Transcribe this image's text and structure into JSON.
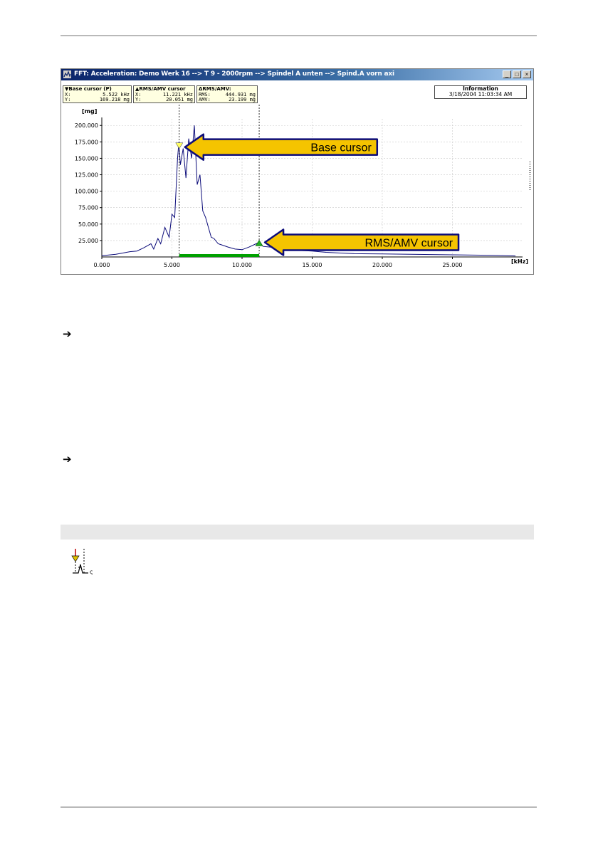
{
  "window": {
    "title": "FFT: Acceleration: Demo Werk 16 --> T 9 - 2000rpm --> Spindel A unten --> Spind.A vorn axi",
    "buttons": {
      "minimize": "_",
      "maximize": "□",
      "close": "×"
    }
  },
  "panels": {
    "base_cursor": {
      "heading": "▼Base cursor (P)",
      "x_label": "X:",
      "x_value": "5.522 kHz",
      "y_label": "Y:",
      "y_value": "169.218 mg"
    },
    "rms_cursor": {
      "heading": "▲RMS/AMV cursor",
      "x_label": "X:",
      "x_value": "11.221 kHz",
      "y_label": "Y:",
      "y_value": "20.051 mg"
    },
    "rms_amv": {
      "heading": "ΔRMS/AMV:",
      "rms_label": "RMS:",
      "rms_value": "444.931 mg",
      "amv_label": "AMV:",
      "amv_value": "23.199 mg"
    },
    "information": {
      "heading": "Information",
      "timestamp": "3/18/2004 11:03:34 AM"
    }
  },
  "chart_data": {
    "type": "line",
    "ylabel": "[mg]",
    "xlabel": "[kHz]",
    "xlim": [
      0,
      30
    ],
    "ylim": [
      0,
      210000
    ],
    "y_ticks": [
      "25.000",
      "50.000",
      "75.000",
      "100.000",
      "125.000",
      "150.000",
      "175.000",
      "200.000"
    ],
    "y_tick_values": [
      25000,
      50000,
      75000,
      100000,
      125000,
      150000,
      175000,
      200000
    ],
    "x_ticks": [
      "0.000",
      "5.000",
      "10.000",
      "15.000",
      "20.000",
      "25.000"
    ],
    "x_tick_values": [
      0,
      5,
      10,
      15,
      20,
      25
    ],
    "grid": true,
    "line_color": "#0c0c7a",
    "cursor_color": "#00a000",
    "series": [
      {
        "x": [
          0.0,
          0.5,
          1.0,
          1.5,
          2.0,
          2.5,
          3.0,
          3.5,
          3.7,
          4.0,
          4.2,
          4.5,
          4.8,
          5.0,
          5.2,
          5.4,
          5.5,
          5.6,
          5.8,
          6.0,
          6.2,
          6.4,
          6.6,
          6.8,
          7.0,
          7.2,
          7.4,
          7.6,
          7.8,
          8.0,
          8.3,
          8.6,
          9.0,
          9.5,
          10.0,
          10.5,
          11.0,
          11.2,
          11.5,
          12.0,
          13.0,
          14.0,
          15.0,
          16.0,
          17.0,
          18.0,
          20.0,
          22.0,
          24.0,
          26.0,
          28.0,
          29.5
        ],
        "y": [
          2000,
          3000,
          4000,
          6000,
          8000,
          9000,
          14000,
          20000,
          12000,
          28000,
          20000,
          45000,
          30000,
          65000,
          60000,
          150000,
          175000,
          140000,
          165000,
          120000,
          180000,
          150000,
          200000,
          110000,
          125000,
          70000,
          60000,
          45000,
          30000,
          28000,
          20000,
          18000,
          15000,
          12000,
          11000,
          15000,
          20000,
          22000,
          16000,
          15000,
          12000,
          10000,
          9000,
          7000,
          6000,
          5000,
          4500,
          4000,
          3500,
          3000,
          2500,
          1500
        ]
      }
    ],
    "annotations": [
      {
        "text": "Base cursor",
        "x": 5.522,
        "y": 169218
      },
      {
        "text": "RMS/AMV cursor",
        "x": 11.221,
        "y": 20051
      }
    ]
  },
  "bullets": [
    "➔",
    "➔"
  ]
}
